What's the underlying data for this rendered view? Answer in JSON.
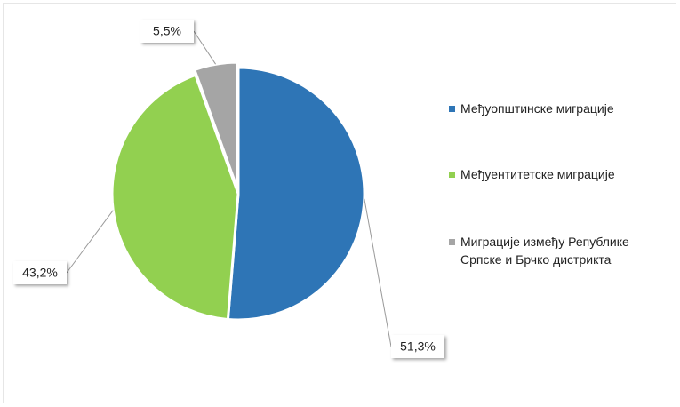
{
  "chart_data": {
    "type": "pie",
    "categories": [
      "Међуопштинске миграције",
      "Међуентитетске миграције",
      "Миграције између Републике Српске и Брчко дистрикта"
    ],
    "values": [
      51.3,
      43.2,
      5.5
    ],
    "value_labels": [
      "51,3%",
      "43,2%",
      "5,5%"
    ],
    "colors": [
      "#2e75b6",
      "#92d050",
      "#a5a5a5"
    ],
    "legend": "right"
  }
}
